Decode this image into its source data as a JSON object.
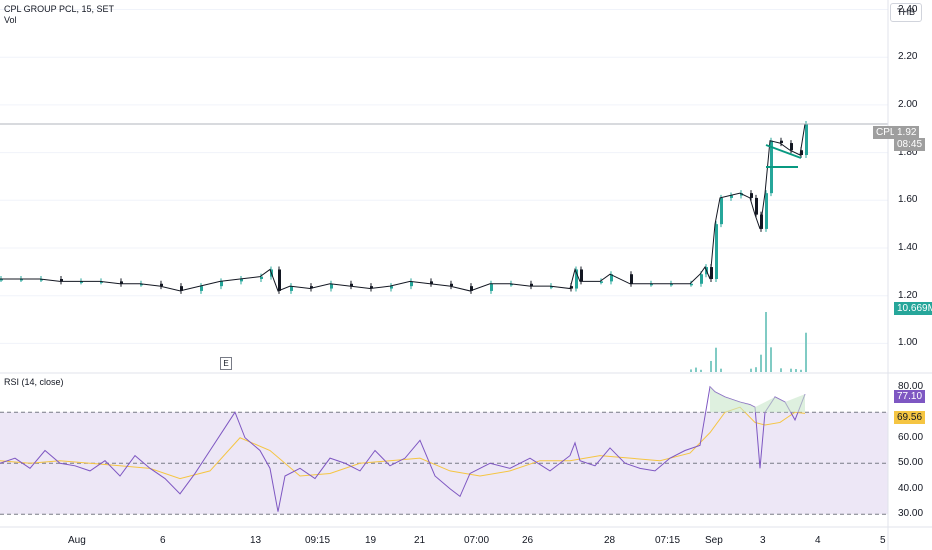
{
  "header": {
    "symbol_line": "CPL GROUP PCL, 15, SET",
    "vol_label": "Vol",
    "currency": "THB"
  },
  "rsi_panel": {
    "title": "RSI (14, close)",
    "value": "77.10",
    "ma_value": "69.56"
  },
  "tags": {
    "symbol": "CPL",
    "last_price": "1.92",
    "countdown": "08:45",
    "volume": "10.669M"
  },
  "colors": {
    "up": "#26a69a",
    "down": "#131722",
    "rsi_line": "#7e57c2",
    "rsi_ma": "#f5c542",
    "rsi_band": "#ede7f6",
    "pattern": "#089981"
  },
  "earnings_marker": "E",
  "chart_data": [
    {
      "type": "line",
      "title": "CPL GROUP PCL, 15, SET",
      "ylabel": "THB",
      "ylim": [
        0.88,
        2.44
      ],
      "y_ticks": [
        "2.40",
        "2.20",
        "2.00",
        "1.80",
        "1.60",
        "1.40",
        "1.20",
        "1.00"
      ],
      "y_tick_values": [
        2.4,
        2.2,
        2.0,
        1.8,
        1.6,
        1.4,
        1.2,
        1.0
      ],
      "x_ticks": [
        "Aug",
        "6",
        "13",
        "09:15",
        "19",
        "21",
        "07:00",
        "26",
        "28",
        "07:15",
        "Sep",
        "3",
        "4",
        "5"
      ],
      "last_price": 1.92,
      "series": [
        {
          "name": "CPL",
          "style": "candles",
          "x": [
            0,
            20,
            40,
            60,
            80,
            100,
            120,
            140,
            160,
            180,
            200,
            220,
            240,
            260,
            270,
            278,
            290,
            310,
            330,
            350,
            370,
            390,
            410,
            430,
            450,
            470,
            490,
            510,
            530,
            550,
            570,
            575,
            580,
            600,
            610,
            630,
            650,
            670,
            690,
            700,
            705,
            710,
            715,
            720,
            730,
            740,
            750,
            755,
            760,
            765,
            770,
            780,
            790,
            800,
            805
          ],
          "values": [
            1.27,
            1.27,
            1.27,
            1.26,
            1.26,
            1.26,
            1.25,
            1.25,
            1.24,
            1.22,
            1.24,
            1.26,
            1.27,
            1.28,
            1.31,
            1.22,
            1.24,
            1.23,
            1.25,
            1.24,
            1.23,
            1.24,
            1.26,
            1.25,
            1.24,
            1.22,
            1.25,
            1.25,
            1.24,
            1.24,
            1.23,
            1.31,
            1.26,
            1.26,
            1.29,
            1.25,
            1.25,
            1.25,
            1.25,
            1.29,
            1.32,
            1.27,
            1.5,
            1.61,
            1.62,
            1.63,
            1.61,
            1.54,
            1.48,
            1.63,
            1.85,
            1.84,
            1.81,
            1.79,
            1.92
          ]
        }
      ]
    },
    {
      "type": "bar",
      "title": "Vol",
      "series": [
        {
          "name": "Vol",
          "x": [
            690,
            695,
            700,
            710,
            715,
            720,
            750,
            755,
            760,
            765,
            770,
            780,
            790,
            795,
            800,
            805
          ],
          "values": [
            0.7,
            1.2,
            0.6,
            3.0,
            6.6,
            0.9,
            0.9,
            1.3,
            4.7,
            16.3,
            6.7,
            1.0,
            0.9,
            0.8,
            0.6,
            10.669
          ]
        }
      ]
    },
    {
      "type": "line",
      "title": "RSI (14, close)",
      "ylim": [
        25,
        85
      ],
      "y_ticks": [
        "80.00",
        "60.00",
        "50.00",
        "40.00",
        "30.00"
      ],
      "y_tick_values": [
        80,
        60,
        50,
        40,
        30
      ],
      "bands": [
        30,
        50,
        70
      ],
      "series": [
        {
          "name": "RSI",
          "x": [
            0,
            15,
            30,
            45,
            60,
            75,
            90,
            105,
            120,
            135,
            150,
            165,
            180,
            195,
            210,
            225,
            235,
            245,
            260,
            270,
            278,
            285,
            300,
            315,
            330,
            345,
            360,
            375,
            390,
            405,
            420,
            435,
            450,
            460,
            470,
            490,
            510,
            530,
            550,
            570,
            575,
            580,
            595,
            610,
            625,
            640,
            655,
            670,
            685,
            700,
            710,
            715,
            725,
            740,
            750,
            755,
            760,
            765,
            775,
            785,
            795,
            805
          ],
          "values": [
            50,
            52,
            48,
            55,
            50,
            49,
            47,
            51,
            45,
            53,
            48,
            44,
            38,
            46,
            55,
            64,
            70,
            60,
            55,
            48,
            31,
            45,
            48,
            44,
            52,
            50,
            47,
            55,
            49,
            52,
            59,
            45,
            40,
            37,
            46,
            50,
            48,
            52,
            47,
            53,
            58,
            51,
            49,
            56,
            50,
            48,
            47,
            52,
            55,
            57,
            80,
            78,
            76,
            74,
            73,
            72,
            48,
            70,
            76,
            74,
            67,
            77.1
          ]
        },
        {
          "name": "RSI-based MA",
          "x": [
            0,
            30,
            60,
            90,
            120,
            150,
            180,
            210,
            240,
            270,
            300,
            330,
            360,
            390,
            420,
            450,
            480,
            510,
            540,
            570,
            600,
            630,
            660,
            690,
            710,
            725,
            740,
            755,
            765,
            780,
            795,
            805
          ],
          "values": [
            51,
            50,
            51,
            50,
            49,
            48,
            44,
            47,
            60,
            55,
            45,
            46,
            50,
            51,
            52,
            47,
            45,
            47,
            51,
            51,
            53,
            52,
            51,
            54,
            62,
            70,
            72,
            66,
            65,
            66,
            70,
            69.56
          ]
        }
      ]
    }
  ]
}
